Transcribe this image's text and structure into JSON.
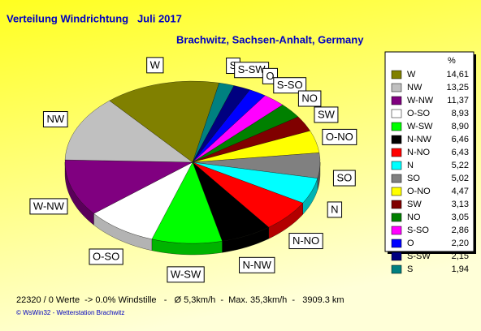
{
  "chart_data": {
    "type": "pie",
    "title": "Verteilung Windrichtung   Juli 2017",
    "subtitle": "Brachwitz, Sachsen-Anhalt, Germany",
    "legend_header": "%",
    "categories": [
      "W",
      "NW",
      "W-NW",
      "O-SO",
      "W-SW",
      "N-NW",
      "N-NO",
      "N",
      "SO",
      "O-NO",
      "SW",
      "NO",
      "S-SO",
      "O",
      "S-SW",
      "S"
    ],
    "values": [
      14.61,
      13.25,
      11.37,
      8.93,
      8.9,
      6.46,
      6.43,
      5.22,
      5.02,
      4.47,
      3.13,
      3.05,
      2.86,
      2.2,
      2.15,
      1.94
    ],
    "value_labels": [
      "14,61",
      "13,25",
      "11,37",
      "8,93",
      "8,90",
      "6,46",
      "6,43",
      "5,22",
      "5,02",
      "4,47",
      "3,13",
      "3,05",
      "2,86",
      "2,20",
      "2,15",
      "1,94"
    ],
    "colors": [
      "#808000",
      "#c0c0c0",
      "#800080",
      "#ffffff",
      "#00ff00",
      "#000000",
      "#ff0000",
      "#00ffff",
      "#808080",
      "#ffff00",
      "#800000",
      "#008000",
      "#ff00ff",
      "#0000ff",
      "#000080",
      "#008080"
    ],
    "footer": "22320 / 0 Werte  -> 0.0% Windstille   -   Ø 5,3km/h  -  Max. 35,3km/h  -   3909.3 km",
    "credit": "© WsWin32  -  Wetterstation Brachwitz"
  }
}
